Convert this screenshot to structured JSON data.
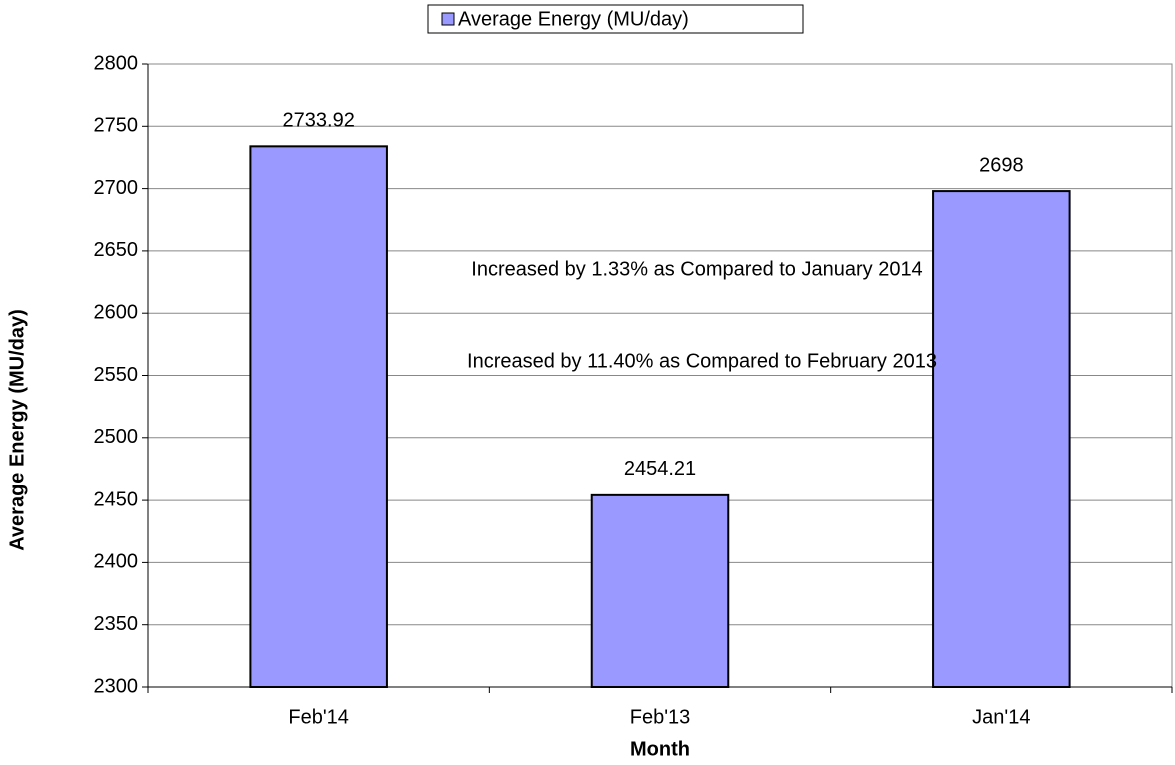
{
  "chart_data": {
    "type": "bar",
    "x_label": "Month",
    "y_label": "Average Energy (MU/day)",
    "categories": [
      "Feb'14",
      "Feb'13",
      "Jan'14"
    ],
    "series": [
      {
        "name": "Average Energy (MU/day)",
        "color": "#9999ff",
        "values": [
          2733.92,
          2454.21,
          2698
        ]
      }
    ],
    "ylim": [
      2300,
      2800
    ],
    "yticks": [
      2300,
      2350,
      2400,
      2450,
      2500,
      2550,
      2600,
      2650,
      2700,
      2750,
      2800
    ],
    "grid": true,
    "legend": "top",
    "annotations": [
      "Increased by 1.33% as Compared to January 2014",
      "Increased by 11.40% as Compared to February 2013"
    ]
  }
}
